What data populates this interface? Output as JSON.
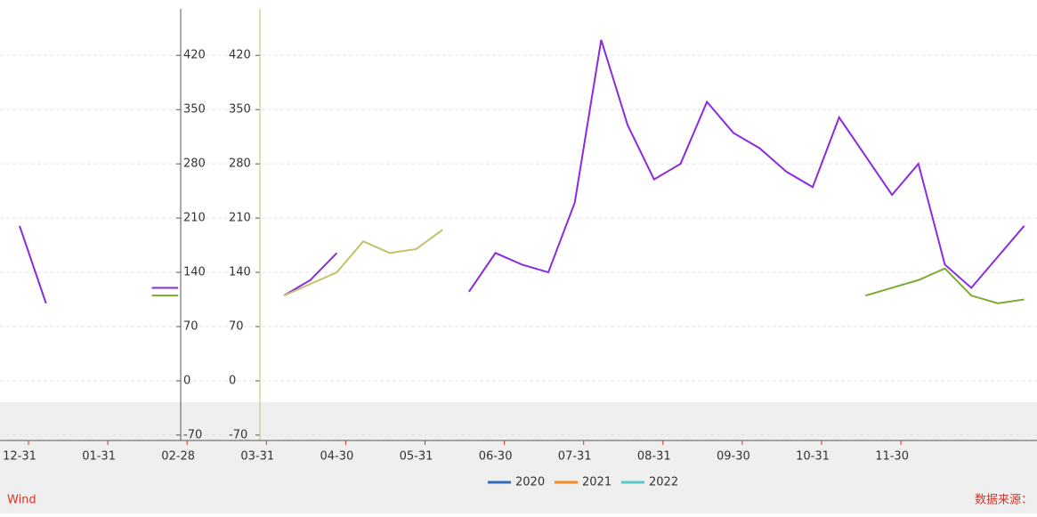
{
  "chart_data": {
    "type": "line",
    "categories": [
      "12-31",
      null,
      null,
      "01-31",
      null,
      null,
      "02-28",
      null,
      null,
      "03-31",
      null,
      null,
      "04-30",
      null,
      null,
      "05-31",
      null,
      null,
      "06-30",
      null,
      null,
      "07-31",
      null,
      null,
      "08-31",
      null,
      null,
      "09-30",
      null,
      null,
      "10-31",
      null,
      null,
      "11-30",
      null,
      null,
      null,
      null,
      null
    ],
    "series": [
      {
        "color": "#8a2be2",
        "values": [
          200,
          100,
          null,
          null,
          null,
          120,
          120,
          null,
          null,
          null,
          110,
          130,
          165,
          null,
          null,
          null,
          null,
          115,
          165,
          150,
          140,
          230,
          440,
          330,
          260,
          280,
          360,
          320,
          300,
          270,
          250,
          340,
          290,
          240,
          280,
          150,
          120,
          160,
          200
        ]
      },
      {
        "color": "#c2c26a",
        "values": [
          null,
          null,
          null,
          null,
          null,
          null,
          null,
          null,
          null,
          null,
          110,
          125,
          140,
          180,
          165,
          170,
          195,
          null,
          null,
          null,
          null,
          null,
          null,
          null,
          null,
          null,
          null,
          null,
          null,
          null,
          null,
          null,
          null,
          null,
          null,
          null,
          null,
          null,
          null
        ]
      },
      {
        "color": "#7cab2f",
        "values": [
          null,
          null,
          null,
          null,
          null,
          110,
          110,
          null,
          null,
          null,
          null,
          null,
          null,
          null,
          null,
          null,
          null,
          null,
          null,
          null,
          null,
          null,
          null,
          null,
          null,
          null,
          null,
          null,
          null,
          null,
          null,
          null,
          110,
          120,
          130,
          145,
          110,
          100,
          105
        ]
      }
    ],
    "legend": [
      {
        "name": "2020",
        "color": "#2f6db5"
      },
      {
        "name": "2021",
        "color": "#f28c28"
      },
      {
        "name": "2022",
        "color": "#5bc8c8"
      }
    ],
    "ylim": [
      -77,
      480
    ],
    "yticks": [
      420,
      350,
      280,
      210,
      140,
      70,
      0,
      -70
    ],
    "y2lim": [
      -77,
      480
    ],
    "y2ticks": [
      420,
      350,
      280,
      210,
      140,
      70,
      0,
      -70
    ],
    "grid": true,
    "source_left": "Wind",
    "source_right": "数据来源："
  }
}
